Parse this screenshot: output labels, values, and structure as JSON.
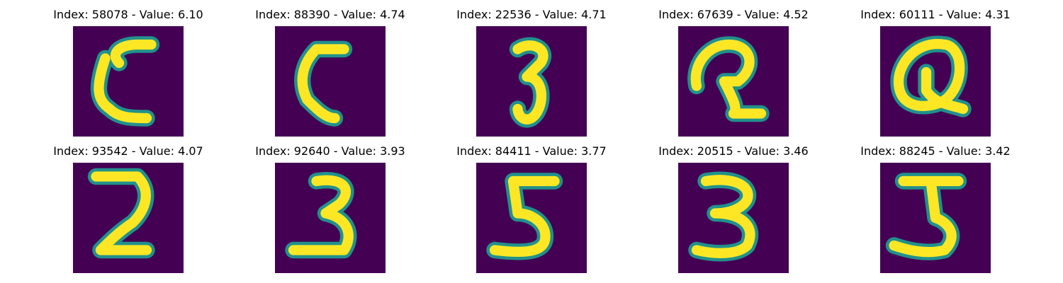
{
  "figure": {
    "panels": [
      {
        "index_label": "Index: 58078",
        "separator": " - ",
        "value_label": "Value: 6.10",
        "glyph": "digit-glyph-c"
      },
      {
        "index_label": "Index: 88390",
        "separator": " - ",
        "value_label": "Value: 4.74",
        "glyph": "digit-glyph-c"
      },
      {
        "index_label": "Index: 22536",
        "separator": " - ",
        "value_label": "Value: 4.71",
        "glyph": "digit-glyph-3"
      },
      {
        "index_label": "Index: 67639",
        "separator": " - ",
        "value_label": "Value: 4.52",
        "glyph": "digit-glyph-loop"
      },
      {
        "index_label": "Index: 60111",
        "separator": " - ",
        "value_label": "Value: 4.31",
        "glyph": "digit-glyph-q"
      },
      {
        "index_label": "Index: 93542",
        "separator": " - ",
        "value_label": "Value: 4.07",
        "glyph": "digit-glyph-2"
      },
      {
        "index_label": "Index: 92640",
        "separator": " - ",
        "value_label": "Value: 3.93",
        "glyph": "digit-glyph-3"
      },
      {
        "index_label": "Index: 84411",
        "separator": " - ",
        "value_label": "Value: 3.77",
        "glyph": "digit-glyph-5"
      },
      {
        "index_label": "Index: 20515",
        "separator": " - ",
        "value_label": "Value: 3.46",
        "glyph": "digit-glyph-3"
      },
      {
        "index_label": "Index: 88245",
        "separator": " - ",
        "value_label": "Value: 3.42",
        "glyph": "digit-glyph-5"
      }
    ],
    "colors": {
      "background": "#440154",
      "edge": "#21918c",
      "stroke": "#fde725"
    }
  }
}
